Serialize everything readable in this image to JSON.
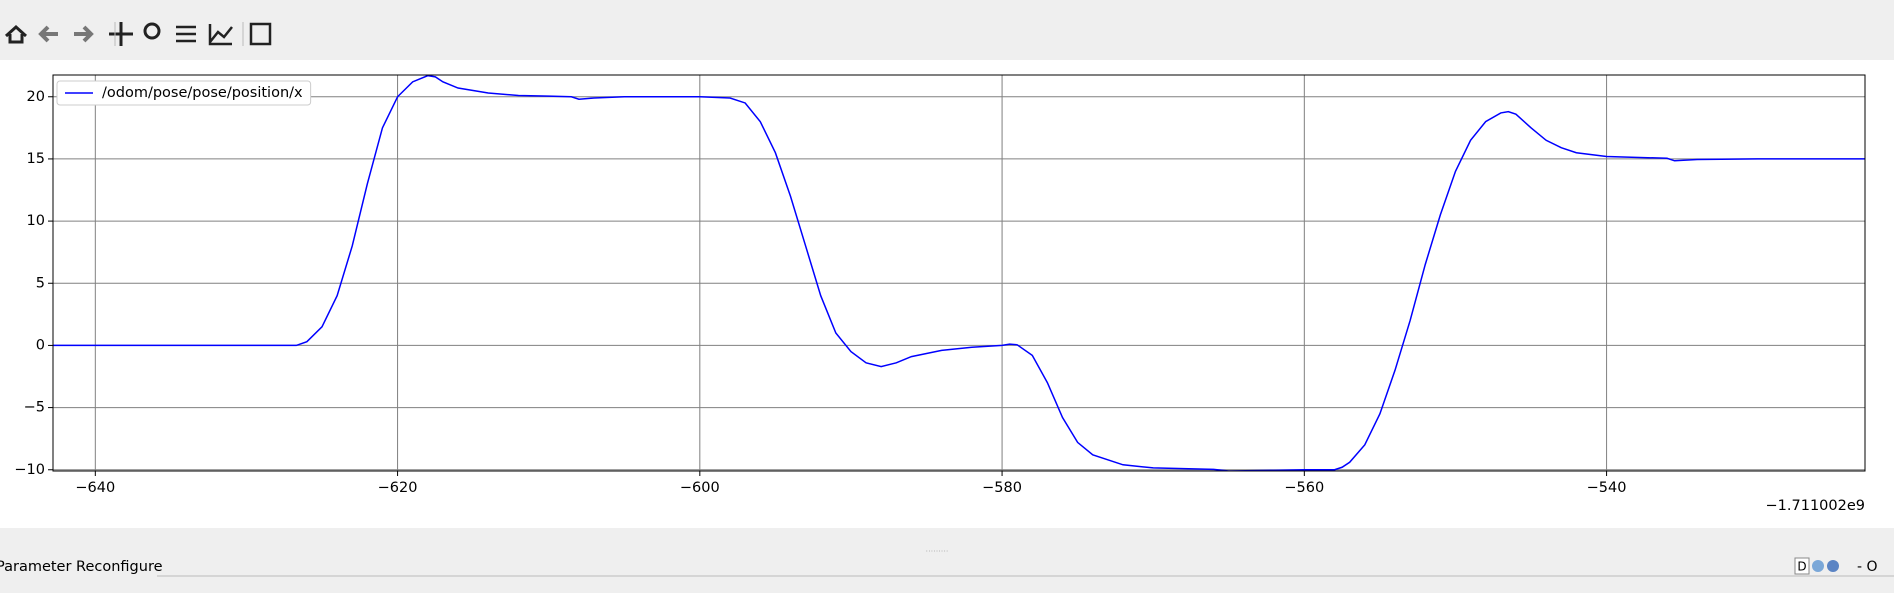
{
  "chart_data": {
    "type": "line",
    "x": [
      -642.8,
      -626.7,
      -626,
      -625,
      -624,
      -623,
      -622,
      -621,
      -620,
      -619,
      -618,
      -617.5,
      -617,
      -616,
      -614,
      -612,
      -610,
      -608.5,
      -608,
      -607,
      -605,
      -600,
      -598,
      -597,
      -596,
      -595,
      -594,
      -593,
      -592,
      -591,
      -590,
      -589,
      -588,
      -587,
      -586,
      -584,
      -582,
      -580,
      -579.5,
      -579,
      -578,
      -577,
      -576,
      -575,
      -574,
      -572,
      -570,
      -566,
      -565,
      -562,
      -560,
      -558,
      -557.5,
      -557,
      -556,
      -555,
      -554,
      -553,
      -552,
      -551,
      -550,
      -549,
      -548,
      -547,
      -546.5,
      -546,
      -545,
      -544,
      -543,
      -542,
      -540,
      -536,
      -535.5,
      -534,
      -530,
      -522.9
    ],
    "series": [
      {
        "name": "/odom/pose/pose/position/x",
        "color": "#0000ff",
        "values": [
          0,
          0,
          0.3,
          1.5,
          4,
          8,
          13,
          17.5,
          20,
          21.2,
          21.7,
          21.6,
          21.2,
          20.7,
          20.3,
          20.1,
          20.05,
          20,
          19.8,
          19.9,
          20,
          20,
          19.9,
          19.5,
          18,
          15.5,
          12,
          8,
          4,
          1,
          -0.5,
          -1.4,
          -1.7,
          -1.4,
          -0.9,
          -0.4,
          -0.15,
          0,
          0.1,
          0.05,
          -0.8,
          -3,
          -5.8,
          -7.8,
          -8.8,
          -9.6,
          -9.85,
          -9.97,
          -10.1,
          -10.05,
          -10,
          -10,
          -9.8,
          -9.4,
          -8,
          -5.5,
          -2,
          2,
          6.5,
          10.5,
          14,
          16.5,
          18,
          18.7,
          18.8,
          18.6,
          17.5,
          16.5,
          15.9,
          15.5,
          15.2,
          15.05,
          14.85,
          14.95,
          15,
          15
        ]
      }
    ],
    "xlim": [
      -642.8,
      -522.9
    ],
    "ylim": [
      -10.1,
      21.75
    ],
    "xticks": [
      {
        "value": -640,
        "label": "−640"
      },
      {
        "value": -620,
        "label": "−620"
      },
      {
        "value": -600,
        "label": "−600"
      },
      {
        "value": -580,
        "label": "−580"
      },
      {
        "value": -560,
        "label": "−560"
      },
      {
        "value": -540,
        "label": "−540"
      }
    ],
    "yticks": [
      {
        "value": -10,
        "label": "−10"
      },
      {
        "value": -5,
        "label": "−5"
      },
      0,
      5,
      10,
      15,
      20
    ],
    "x_offset_label": "−1.711002e9",
    "grid": true,
    "legend": "upper left"
  },
  "ui": {
    "panel_title": "Parameter Reconfigure",
    "dock_label": "D",
    "window_controls": "- O"
  }
}
